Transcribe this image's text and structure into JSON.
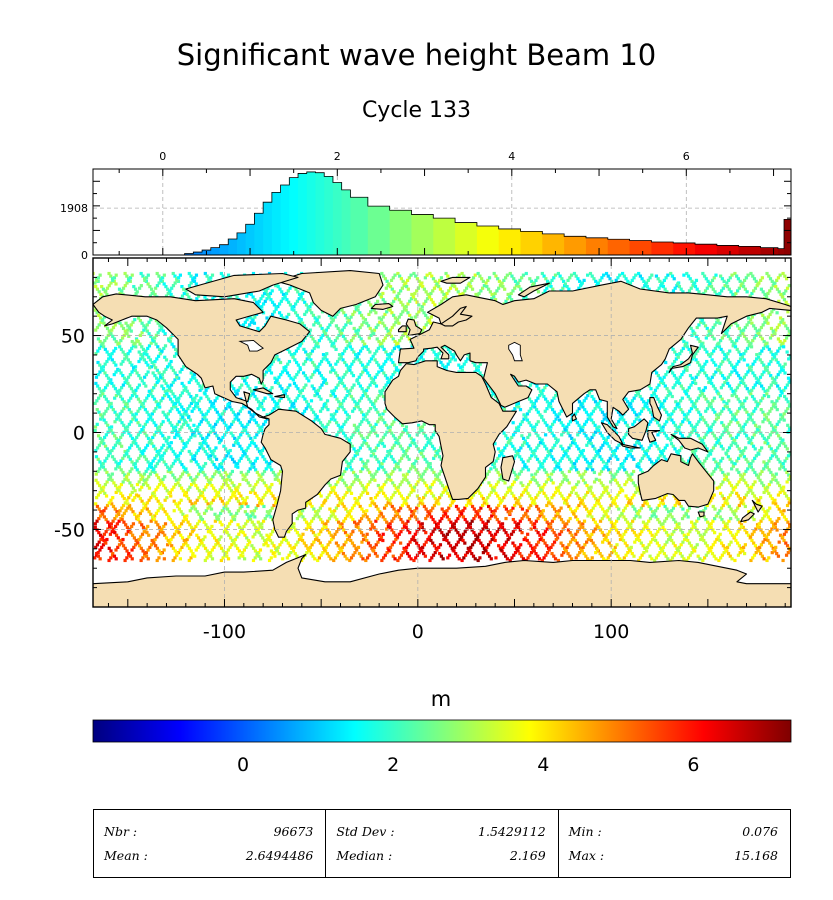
{
  "title": "Significant wave height Beam 10",
  "subtitle": "Cycle 133",
  "colors": {
    "land": "#f5deb3",
    "coast": "#000000",
    "grid": "#b0b0b0",
    "background": "#ffffff"
  },
  "colormap": [
    "#00007f",
    "#0000ff",
    "#007fff",
    "#00ffff",
    "#7fff7f",
    "#ffff00",
    "#ff7f00",
    "#ff0000",
    "#7f0000"
  ],
  "chart_data": [
    {
      "type": "histogram",
      "x_ticks": [
        0,
        2,
        4,
        6
      ],
      "y_ticks": [
        0,
        1908
      ],
      "xlim": [
        -0.8,
        7.2
      ],
      "ylim": [
        0,
        3500
      ],
      "grid": true,
      "bins": [
        [
          0.2,
          0
        ],
        [
          0.25,
          60
        ],
        [
          0.35,
          120
        ],
        [
          0.45,
          200
        ],
        [
          0.55,
          300
        ],
        [
          0.65,
          420
        ],
        [
          0.75,
          650
        ],
        [
          0.85,
          900
        ],
        [
          0.95,
          1250
        ],
        [
          1.05,
          1700
        ],
        [
          1.15,
          2150
        ],
        [
          1.25,
          2550
        ],
        [
          1.35,
          2850
        ],
        [
          1.45,
          3150
        ],
        [
          1.55,
          3320
        ],
        [
          1.65,
          3380
        ],
        [
          1.75,
          3350
        ],
        [
          1.85,
          3200
        ],
        [
          1.95,
          2950
        ],
        [
          2.05,
          2650
        ],
        [
          2.15,
          2350
        ],
        [
          2.35,
          1990
        ],
        [
          2.6,
          1820
        ],
        [
          2.85,
          1650
        ],
        [
          3.1,
          1500
        ],
        [
          3.35,
          1320
        ],
        [
          3.6,
          1180
        ],
        [
          3.85,
          1060
        ],
        [
          4.1,
          960
        ],
        [
          4.35,
          860
        ],
        [
          4.6,
          760
        ],
        [
          4.85,
          700
        ],
        [
          5.1,
          640
        ],
        [
          5.35,
          590
        ],
        [
          5.6,
          530
        ],
        [
          5.85,
          490
        ],
        [
          6.1,
          440
        ],
        [
          6.35,
          390
        ],
        [
          6.6,
          350
        ],
        [
          6.85,
          300
        ],
        [
          7.05,
          260
        ],
        [
          7.12,
          1450
        ]
      ]
    },
    {
      "type": "map",
      "x_ticks": [
        -100,
        0,
        100
      ],
      "y_ticks": [
        50,
        0,
        -50
      ],
      "xlim": [
        -168,
        193
      ],
      "ylim": [
        -90,
        90
      ],
      "grid": true
    }
  ],
  "colorbar": {
    "label": "m",
    "ticks": [
      0,
      2,
      4,
      6
    ],
    "range": [
      -2,
      7.3
    ]
  },
  "stats": [
    [
      {
        "label": "Nbr :",
        "value": "96673"
      },
      {
        "label": "Mean :",
        "value": "2.6494486"
      }
    ],
    [
      {
        "label": "Std Dev :",
        "value": "1.5429112"
      },
      {
        "label": "Median :",
        "value": "2.169"
      }
    ],
    [
      {
        "label": "Min :",
        "value": "0.076"
      },
      {
        "label": "Max :",
        "value": "15.168"
      }
    ]
  ]
}
